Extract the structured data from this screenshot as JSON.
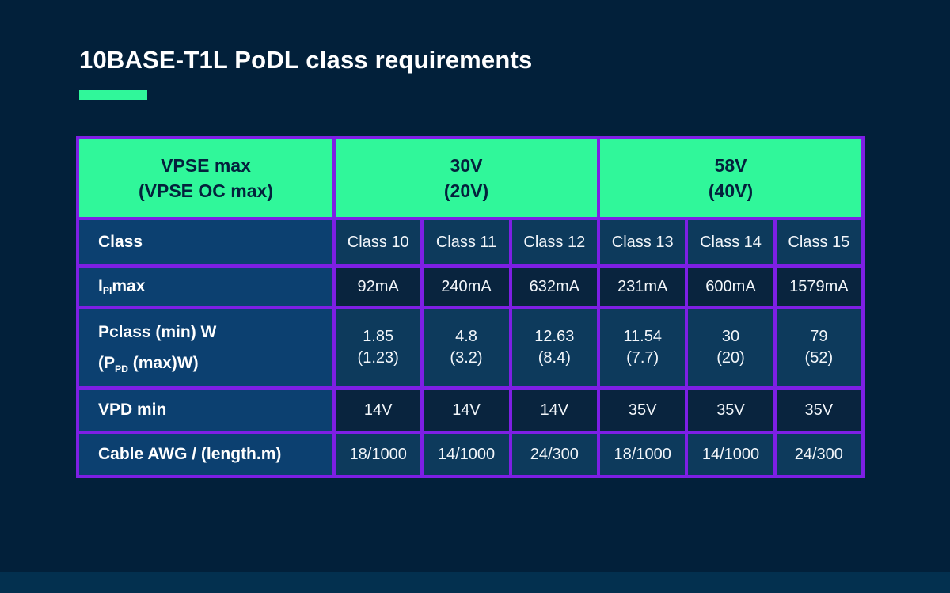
{
  "title": "10BASE-T1L PoDL class requirements",
  "colors": {
    "background": "#02203A",
    "footer_strip": "#03304F",
    "accent_green": "#30F79A",
    "border_purple": "#7E1FE4",
    "label_cell_blue": "#0C4070",
    "data_cell_light": "#0D3A5C",
    "data_cell_dark": "#09243E",
    "header_text_navy": "#04213C",
    "text_white": "#FFFFFF"
  },
  "table": {
    "header": {
      "corner": {
        "line1": "VPSE max",
        "line2": "(VPSE OC max)"
      },
      "group30": {
        "line1": "30V",
        "line2": "(20V)"
      },
      "group58": {
        "line1": "58V",
        "line2": "(40V)"
      }
    },
    "rows": {
      "class": {
        "label": "Class",
        "values": [
          "Class 10",
          "Class 11",
          "Class 12",
          "Class 13",
          "Class 14",
          "Class 15"
        ]
      },
      "ipi_max": {
        "label_pre": "I",
        "label_sub": "PI",
        "label_post": " max",
        "values": [
          "92mA",
          "240mA",
          "632mA",
          "231mA",
          "600mA",
          "1579mA"
        ]
      },
      "pclass": {
        "label_line1": "Pclass (min) W",
        "label_line2_pre": "(P",
        "label_line2_sub": "PD",
        "label_line2_post": " (max)W)",
        "values": [
          {
            "main": "1.85",
            "paren": "(1.23)"
          },
          {
            "main": "4.8",
            "paren": "(3.2)"
          },
          {
            "main": "12.63",
            "paren": "(8.4)"
          },
          {
            "main": "11.54",
            "paren": "(7.7)"
          },
          {
            "main": "30",
            "paren": "(20)"
          },
          {
            "main": "79",
            "paren": "(52)"
          }
        ]
      },
      "vpd_min": {
        "label": "VPD min",
        "values": [
          "14V",
          "14V",
          "14V",
          "35V",
          "35V",
          "35V"
        ]
      },
      "cable": {
        "label": "Cable AWG / (length.m)",
        "values": [
          "18/1000",
          "14/1000",
          "24/300",
          "18/1000",
          "14/1000",
          "24/300"
        ]
      }
    }
  },
  "chart_data": {
    "type": "table",
    "title": "10BASE-T1L PoDL class requirements",
    "column_groups": [
      {
        "label": "VPSE max (VPSE OC max)",
        "columns": []
      },
      {
        "label": "30V (20V)",
        "columns": [
          "Class 10",
          "Class 11",
          "Class 12"
        ]
      },
      {
        "label": "58V (40V)",
        "columns": [
          "Class 13",
          "Class 14",
          "Class 15"
        ]
      }
    ],
    "rows": [
      {
        "label": "Class",
        "values": [
          "Class 10",
          "Class 11",
          "Class 12",
          "Class 13",
          "Class 14",
          "Class 15"
        ]
      },
      {
        "label": "IPI max",
        "values": [
          "92mA",
          "240mA",
          "632mA",
          "231mA",
          "600mA",
          "1579mA"
        ]
      },
      {
        "label": "Pclass (min) W (PPD (max)W)",
        "values": [
          "1.85 (1.23)",
          "4.8 (3.2)",
          "12.63 (8.4)",
          "11.54 (7.7)",
          "30 (20)",
          "79 (52)"
        ]
      },
      {
        "label": "VPD min",
        "values": [
          "14V",
          "14V",
          "14V",
          "35V",
          "35V",
          "35V"
        ]
      },
      {
        "label": "Cable AWG / (length.m)",
        "values": [
          "18/1000",
          "14/1000",
          "24/300",
          "18/1000",
          "14/1000",
          "24/300"
        ]
      }
    ]
  }
}
